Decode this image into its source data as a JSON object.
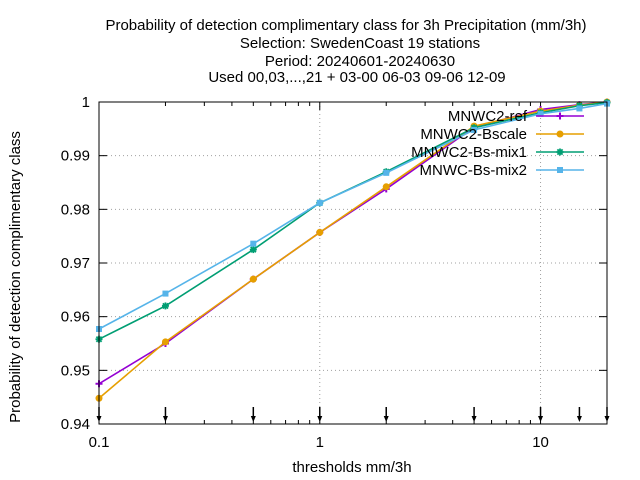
{
  "chart_data": {
    "type": "line",
    "title_lines": [
      "Probability of detection complimentary class  for 3h Precipitation (mm/3h)",
      "Selection: SwedenCoast     19 stations",
      "Period: 20240601-20240630",
      "Used 00,03,...,21 + 03-00 06-03 09-06 12-09"
    ],
    "xlabel": "thresholds mm/3h",
    "ylabel": "Probability of detection complimentary class",
    "x_scale": "log",
    "xlim": [
      0.1,
      20
    ],
    "ylim": [
      0.94,
      1.0
    ],
    "x_ticks": [
      {
        "value": 0.1,
        "label": "0.1"
      },
      {
        "value": 1,
        "label": "1"
      },
      {
        "value": 10,
        "label": "10"
      }
    ],
    "y_ticks": [
      {
        "value": 0.94,
        "label": "0.94"
      },
      {
        "value": 0.95,
        "label": "0.95"
      },
      {
        "value": 0.96,
        "label": "0.96"
      },
      {
        "value": 0.97,
        "label": "0.97"
      },
      {
        "value": 0.98,
        "label": "0.98"
      },
      {
        "value": 0.99,
        "label": "0.99"
      },
      {
        "value": 1.0,
        "label": "1"
      }
    ],
    "threshold_arrows": [
      0.1,
      0.2,
      0.5,
      1,
      2,
      5,
      10,
      15,
      20
    ],
    "x": [
      0.1,
      0.2,
      0.5,
      1,
      2,
      5,
      10,
      15,
      20
    ],
    "series": [
      {
        "name": "MNWC2-ref",
        "color": "#9400d3",
        "marker": "plus",
        "values": [
          0.9475,
          0.955,
          0.967,
          0.9757,
          0.9838,
          0.9953,
          0.9986,
          0.9995,
          1.0
        ]
      },
      {
        "name": "MNWC2-Bscale",
        "color": "#e69f00",
        "marker": "circle",
        "values": [
          0.9448,
          0.9553,
          0.967,
          0.9757,
          0.9842,
          0.9955,
          0.9983,
          0.9994,
          1.0
        ]
      },
      {
        "name": "MNWC2-Bs-mix1",
        "color": "#009e73",
        "marker": "star",
        "values": [
          0.9558,
          0.962,
          0.9725,
          0.9812,
          0.987,
          0.9952,
          0.998,
          0.9993,
          0.9999
        ]
      },
      {
        "name": "MNWC-Bs-mix2",
        "color": "#56b4e9",
        "marker": "box",
        "values": [
          0.9577,
          0.9643,
          0.9736,
          0.9812,
          0.9868,
          0.9948,
          0.9978,
          0.9988,
          0.9997
        ]
      }
    ]
  }
}
